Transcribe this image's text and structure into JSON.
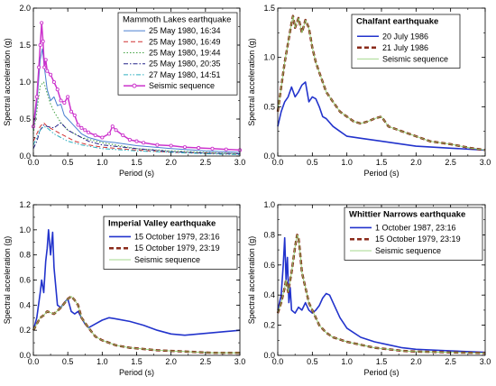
{
  "chart_data": [
    {
      "type": "line",
      "title": "Mammoth Lakes earthquake",
      "title_bold": false,
      "xlabel": "Period (s)",
      "ylabel": "Spectral acceleration (g)",
      "xlim": [
        0,
        3.0
      ],
      "ylim": [
        0,
        2.0
      ],
      "xticks": [
        "0.0",
        "0.5",
        "1.0",
        "1.5",
        "2.0",
        "2.5",
        "3.0"
      ],
      "yticks": [
        "0.0",
        "0.5",
        "1.0",
        "1.5",
        "2.0"
      ],
      "minor_x": 0.25,
      "minor_y": 0.25,
      "legend_position": "top-right",
      "series": [
        {
          "name": "25 May 1980, 16:34",
          "color": "#4a7fd0",
          "style": "solid",
          "width": 1,
          "x": [
            0,
            0.05,
            0.1,
            0.13,
            0.16,
            0.2,
            0.25,
            0.3,
            0.35,
            0.4,
            0.45,
            0.5,
            0.6,
            0.7,
            0.8,
            1.0,
            1.2,
            1.5,
            2.0,
            2.5,
            3.0
          ],
          "y": [
            0.35,
            0.7,
            1.3,
            1.45,
            1.2,
            0.9,
            0.75,
            0.8,
            0.68,
            0.7,
            0.55,
            0.5,
            0.4,
            0.3,
            0.25,
            0.2,
            0.18,
            0.14,
            0.1,
            0.07,
            0.05
          ]
        },
        {
          "name": "25 May 1980, 16:49",
          "color": "#d03030",
          "style": "dashed",
          "width": 1,
          "x": [
            0,
            0.05,
            0.1,
            0.15,
            0.2,
            0.3,
            0.4,
            0.5,
            0.6,
            0.8,
            1.0,
            1.5,
            2.0,
            2.5,
            3.0
          ],
          "y": [
            0.2,
            0.3,
            0.4,
            0.45,
            0.4,
            0.35,
            0.3,
            0.25,
            0.2,
            0.15,
            0.12,
            0.08,
            0.05,
            0.04,
            0.03
          ]
        },
        {
          "name": "25 May 1980, 19:44",
          "color": "#40a040",
          "style": "dotted",
          "width": 1,
          "x": [
            0,
            0.05,
            0.1,
            0.15,
            0.2,
            0.25,
            0.3,
            0.4,
            0.5,
            0.7,
            1.0,
            1.5,
            2.0,
            2.5,
            3.0
          ],
          "y": [
            0.3,
            0.6,
            0.95,
            1.0,
            0.85,
            0.7,
            0.6,
            0.45,
            0.35,
            0.25,
            0.18,
            0.1,
            0.07,
            0.05,
            0.03
          ]
        },
        {
          "name": "25 May 1980, 20:35",
          "color": "#222288",
          "style": "dashdot",
          "width": 1,
          "x": [
            0,
            0.05,
            0.1,
            0.15,
            0.2,
            0.3,
            0.4,
            0.5,
            0.6,
            0.8,
            1.0,
            1.5,
            2.0,
            2.5,
            3.0
          ],
          "y": [
            0.1,
            0.2,
            0.35,
            0.42,
            0.4,
            0.38,
            0.45,
            0.35,
            0.3,
            0.2,
            0.15,
            0.1,
            0.06,
            0.04,
            0.03
          ]
        },
        {
          "name": "27 May 1980, 14:51",
          "color": "#30b0c0",
          "style": "dashdotdot",
          "width": 1,
          "x": [
            0,
            0.05,
            0.1,
            0.15,
            0.2,
            0.3,
            0.4,
            0.5,
            0.7,
            1.0,
            1.5,
            2.0,
            2.5,
            3.0
          ],
          "y": [
            0.15,
            0.25,
            0.35,
            0.4,
            0.38,
            0.3,
            0.25,
            0.2,
            0.15,
            0.1,
            0.07,
            0.05,
            0.03,
            0.02
          ]
        },
        {
          "name": "Seismic sequence",
          "color": "#cc33cc",
          "style": "solid",
          "width": 1.5,
          "markers": true,
          "x": [
            0,
            0.05,
            0.08,
            0.1,
            0.12,
            0.14,
            0.16,
            0.18,
            0.2,
            0.25,
            0.3,
            0.35,
            0.4,
            0.45,
            0.5,
            0.55,
            0.6,
            0.65,
            0.7,
            0.75,
            0.8,
            0.9,
            1.0,
            1.1,
            1.15,
            1.2,
            1.3,
            1.4,
            1.5,
            1.6,
            1.8,
            2.0,
            2.2,
            2.4,
            2.6,
            2.8,
            3.0
          ],
          "y": [
            0.4,
            0.8,
            1.2,
            1.5,
            1.8,
            1.55,
            1.2,
            1.3,
            1.15,
            1.1,
            1.0,
            0.9,
            0.75,
            0.72,
            0.8,
            0.6,
            0.55,
            0.42,
            0.38,
            0.35,
            0.32,
            0.28,
            0.25,
            0.3,
            0.4,
            0.35,
            0.28,
            0.22,
            0.2,
            0.18,
            0.15,
            0.14,
            0.12,
            0.11,
            0.1,
            0.09,
            0.08
          ]
        }
      ]
    },
    {
      "type": "line",
      "title": "Chalfant earthquake",
      "title_bold": true,
      "xlabel": "Period (s)",
      "ylabel": "Spectral acceleration (g)",
      "xlim": [
        0,
        3.0
      ],
      "ylim": [
        0,
        1.5
      ],
      "xticks": [
        "0.0",
        "0.5",
        "1.0",
        "1.5",
        "2.0",
        "2.5",
        "3.0"
      ],
      "yticks": [
        "0.0",
        "0.5",
        "1.0",
        "1.5"
      ],
      "minor_x": 0.25,
      "minor_y": 0.25,
      "legend_position": "top-right",
      "series": [
        {
          "name": "20 July 1986",
          "color": "#2233cc",
          "style": "solid",
          "width": 1.6,
          "x": [
            0,
            0.05,
            0.1,
            0.15,
            0.2,
            0.25,
            0.3,
            0.35,
            0.4,
            0.45,
            0.5,
            0.55,
            0.6,
            0.65,
            0.7,
            0.8,
            0.9,
            1.0,
            1.2,
            1.5,
            2.0,
            2.5,
            3.0
          ],
          "y": [
            0.3,
            0.45,
            0.55,
            0.6,
            0.7,
            0.6,
            0.65,
            0.72,
            0.75,
            0.55,
            0.6,
            0.58,
            0.5,
            0.4,
            0.38,
            0.3,
            0.25,
            0.2,
            0.18,
            0.15,
            0.1,
            0.08,
            0.06
          ]
        },
        {
          "name": "21 July 1986",
          "color": "#8a2a1a",
          "style": "dashed",
          "width": 2.5,
          "x": [
            0,
            0.05,
            0.1,
            0.15,
            0.2,
            0.22,
            0.25,
            0.3,
            0.35,
            0.4,
            0.45,
            0.5,
            0.55,
            0.6,
            0.7,
            0.8,
            0.9,
            1.0,
            1.1,
            1.2,
            1.3,
            1.4,
            1.5,
            1.6,
            1.8,
            2.0,
            2.2,
            2.5,
            2.8,
            3.0
          ],
          "y": [
            0.45,
            0.7,
            0.95,
            1.15,
            1.35,
            1.42,
            1.3,
            1.4,
            1.25,
            1.38,
            1.3,
            1.1,
            0.95,
            0.85,
            0.65,
            0.55,
            0.45,
            0.4,
            0.35,
            0.33,
            0.35,
            0.38,
            0.4,
            0.3,
            0.25,
            0.2,
            0.15,
            0.12,
            0.08,
            0.06
          ]
        },
        {
          "name": "Seismic sequence",
          "color": "#88cc66",
          "style": "solid",
          "width": 0.8,
          "x": [
            0,
            0.05,
            0.1,
            0.15,
            0.2,
            0.22,
            0.25,
            0.3,
            0.35,
            0.4,
            0.45,
            0.5,
            0.55,
            0.6,
            0.7,
            0.8,
            0.9,
            1.0,
            1.1,
            1.2,
            1.3,
            1.4,
            1.5,
            1.6,
            1.8,
            2.0,
            2.2,
            2.5,
            2.8,
            3.0
          ],
          "y": [
            0.45,
            0.7,
            0.95,
            1.15,
            1.35,
            1.42,
            1.3,
            1.4,
            1.25,
            1.38,
            1.3,
            1.1,
            0.95,
            0.85,
            0.65,
            0.55,
            0.45,
            0.4,
            0.35,
            0.33,
            0.35,
            0.38,
            0.4,
            0.3,
            0.25,
            0.2,
            0.15,
            0.12,
            0.08,
            0.06
          ]
        }
      ]
    },
    {
      "type": "line",
      "title": "Imperial Valley earthquake",
      "title_bold": true,
      "xlabel": "Period (s)",
      "ylabel": "Spectral acceleration (g)",
      "xlim": [
        0,
        3.0
      ],
      "ylim": [
        0,
        1.2
      ],
      "xticks": [
        "0.0",
        "0.5",
        "1.0",
        "1.5",
        "2.0",
        "2.5",
        "3.0"
      ],
      "yticks": [
        "0.0",
        "0.2",
        "0.4",
        "0.6",
        "0.8",
        "1.0",
        "1.2"
      ],
      "minor_x": 0.25,
      "minor_y": 0.1,
      "legend_position": "top-right",
      "series": [
        {
          "name": "15 October 1979, 23:16",
          "color": "#2233cc",
          "style": "solid",
          "width": 1.6,
          "x": [
            0,
            0.05,
            0.1,
            0.12,
            0.15,
            0.18,
            0.2,
            0.22,
            0.25,
            0.28,
            0.3,
            0.35,
            0.4,
            0.45,
            0.5,
            0.55,
            0.6,
            0.65,
            0.7,
            0.75,
            0.8,
            0.9,
            1.0,
            1.1,
            1.2,
            1.4,
            1.6,
            1.8,
            2.0,
            2.2,
            2.4,
            2.6,
            2.8,
            3.0
          ],
          "y": [
            0.2,
            0.3,
            0.5,
            0.6,
            0.5,
            0.75,
            0.85,
            1.0,
            0.8,
            0.98,
            0.7,
            0.4,
            0.38,
            0.42,
            0.45,
            0.35,
            0.33,
            0.35,
            0.3,
            0.25,
            0.22,
            0.25,
            0.28,
            0.3,
            0.29,
            0.27,
            0.24,
            0.2,
            0.17,
            0.16,
            0.17,
            0.18,
            0.19,
            0.2
          ]
        },
        {
          "name": "15 October 1979, 23:19",
          "color": "#8a2a1a",
          "style": "dashed",
          "width": 2.5,
          "x": [
            0,
            0.05,
            0.1,
            0.15,
            0.2,
            0.3,
            0.4,
            0.5,
            0.55,
            0.6,
            0.65,
            0.7,
            0.8,
            0.9,
            1.0,
            1.1,
            1.2,
            1.4,
            1.6,
            1.8,
            2.0,
            2.2,
            2.4,
            2.6,
            2.8,
            3.0
          ],
          "y": [
            0.2,
            0.25,
            0.3,
            0.32,
            0.35,
            0.33,
            0.38,
            0.45,
            0.47,
            0.44,
            0.4,
            0.3,
            0.22,
            0.15,
            0.12,
            0.1,
            0.08,
            0.06,
            0.05,
            0.04,
            0.035,
            0.03,
            0.025,
            0.02,
            0.02,
            0.02
          ]
        },
        {
          "name": "Seismic sequence",
          "color": "#88cc66",
          "style": "solid",
          "width": 0.8,
          "x": [
            0,
            0.05,
            0.1,
            0.15,
            0.2,
            0.3,
            0.4,
            0.5,
            0.55,
            0.6,
            0.65,
            0.7,
            0.8,
            0.9,
            1.0,
            1.1,
            1.2,
            1.4,
            1.6,
            1.8,
            2.0,
            2.2,
            2.4,
            2.6,
            2.8,
            3.0
          ],
          "y": [
            0.2,
            0.25,
            0.3,
            0.32,
            0.35,
            0.33,
            0.38,
            0.45,
            0.47,
            0.44,
            0.4,
            0.3,
            0.22,
            0.15,
            0.12,
            0.1,
            0.08,
            0.06,
            0.05,
            0.04,
            0.035,
            0.03,
            0.025,
            0.02,
            0.02,
            0.02
          ]
        }
      ]
    },
    {
      "type": "line",
      "title": "Whittier Narrows earthquake",
      "title_bold": true,
      "xlabel": "Period (s)",
      "ylabel": "Spectral acceleration (g)",
      "xlim": [
        0,
        3.0
      ],
      "ylim": [
        0,
        1.0
      ],
      "xticks": [
        "0.0",
        "0.5",
        "1.0",
        "1.5",
        "2.0",
        "2.5",
        "3.0"
      ],
      "yticks": [
        "0.0",
        "0.2",
        "0.4",
        "0.6",
        "0.8",
        "1.0"
      ],
      "minor_x": 0.25,
      "minor_y": 0.1,
      "legend_position": "top-right",
      "series": [
        {
          "name": "1 October 1987, 23:16",
          "color": "#2233cc",
          "style": "solid",
          "width": 1.6,
          "x": [
            0,
            0.05,
            0.08,
            0.1,
            0.12,
            0.14,
            0.16,
            0.18,
            0.2,
            0.25,
            0.3,
            0.35,
            0.4,
            0.45,
            0.5,
            0.55,
            0.6,
            0.65,
            0.7,
            0.75,
            0.8,
            0.9,
            1.0,
            1.2,
            1.4,
            1.6,
            1.8,
            2.0,
            2.5,
            3.0
          ],
          "y": [
            0.3,
            0.4,
            0.6,
            0.78,
            0.5,
            0.65,
            0.35,
            0.45,
            0.3,
            0.28,
            0.32,
            0.3,
            0.35,
            0.3,
            0.28,
            0.3,
            0.33,
            0.38,
            0.41,
            0.4,
            0.35,
            0.25,
            0.18,
            0.12,
            0.09,
            0.07,
            0.05,
            0.04,
            0.03,
            0.02
          ]
        },
        {
          "name": "15 October 1979, 23:19",
          "color": "#8a2a1a",
          "style": "dashed",
          "width": 2.5,
          "x": [
            0,
            0.05,
            0.1,
            0.12,
            0.15,
            0.2,
            0.25,
            0.28,
            0.3,
            0.32,
            0.35,
            0.4,
            0.45,
            0.5,
            0.6,
            0.7,
            0.8,
            1.0,
            1.2,
            1.4,
            1.6,
            1.8,
            2.0,
            2.5,
            3.0
          ],
          "y": [
            0.28,
            0.35,
            0.45,
            0.5,
            0.42,
            0.55,
            0.72,
            0.8,
            0.78,
            0.7,
            0.55,
            0.45,
            0.35,
            0.3,
            0.2,
            0.15,
            0.12,
            0.09,
            0.07,
            0.05,
            0.04,
            0.03,
            0.025,
            0.02,
            0.015
          ]
        },
        {
          "name": "Seismic sequence",
          "color": "#88cc66",
          "style": "solid",
          "width": 0.8,
          "x": [
            0,
            0.05,
            0.1,
            0.12,
            0.15,
            0.2,
            0.25,
            0.28,
            0.3,
            0.32,
            0.35,
            0.4,
            0.45,
            0.5,
            0.6,
            0.7,
            0.8,
            1.0,
            1.2,
            1.4,
            1.6,
            1.8,
            2.0,
            2.5,
            3.0
          ],
          "y": [
            0.28,
            0.35,
            0.45,
            0.5,
            0.42,
            0.55,
            0.72,
            0.8,
            0.78,
            0.7,
            0.55,
            0.45,
            0.35,
            0.3,
            0.2,
            0.15,
            0.12,
            0.09,
            0.07,
            0.05,
            0.04,
            0.03,
            0.025,
            0.02,
            0.015
          ]
        }
      ]
    }
  ]
}
